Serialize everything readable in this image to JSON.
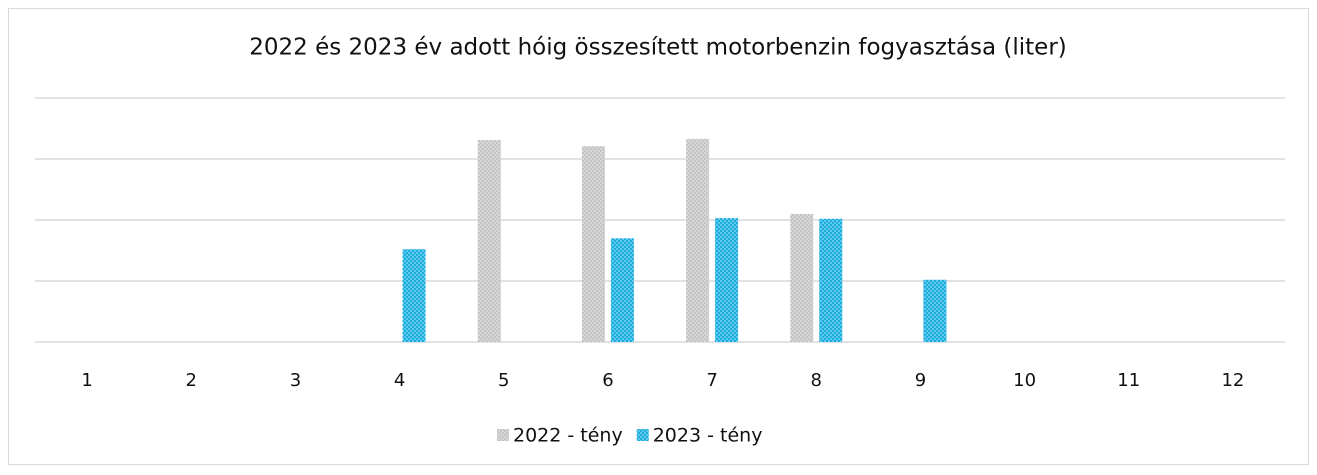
{
  "chart_data": {
    "type": "bar",
    "title": "2022 és 2023 év adott hóig összesített motorbenzin fogyasztása (liter)",
    "categories": [
      "1",
      "2",
      "3",
      "4",
      "5",
      "6",
      "7",
      "8",
      "9",
      "10",
      "11",
      "12"
    ],
    "series": [
      {
        "name": "2022 - tény",
        "color": "#c4c4c4",
        "values": [
          null,
          null,
          null,
          null,
          3.31,
          3.21,
          3.33,
          2.1,
          null,
          null,
          null,
          null
        ]
      },
      {
        "name": "2023 - tény",
        "color": "#18aee0",
        "values": [
          null,
          null,
          null,
          1.52,
          null,
          1.7,
          2.03,
          2.02,
          1.02,
          null,
          null,
          null
        ]
      }
    ],
    "ylim": [
      0,
      4
    ],
    "yticks": [
      0,
      1,
      2,
      3,
      4
    ],
    "grid": true,
    "legend": "bottom"
  }
}
